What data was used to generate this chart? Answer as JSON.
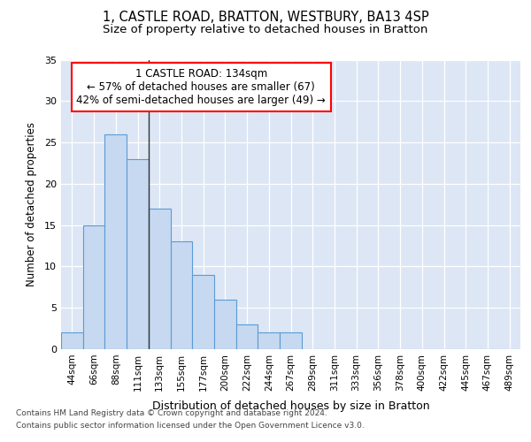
{
  "title1": "1, CASTLE ROAD, BRATTON, WESTBURY, BA13 4SP",
  "title2": "Size of property relative to detached houses in Bratton",
  "xlabel": "Distribution of detached houses by size in Bratton",
  "ylabel": "Number of detached properties",
  "categories": [
    "44sqm",
    "66sqm",
    "88sqm",
    "111sqm",
    "133sqm",
    "155sqm",
    "177sqm",
    "200sqm",
    "222sqm",
    "244sqm",
    "267sqm",
    "289sqm",
    "311sqm",
    "333sqm",
    "356sqm",
    "378sqm",
    "400sqm",
    "422sqm",
    "445sqm",
    "467sqm",
    "489sqm"
  ],
  "values": [
    2,
    15,
    26,
    23,
    17,
    13,
    9,
    6,
    3,
    2,
    2,
    0,
    0,
    0,
    0,
    0,
    0,
    0,
    0,
    0,
    0
  ],
  "bar_color": "#c6d9f0",
  "bar_edge_color": "#5b9bd5",
  "highlight_line_color": "#333333",
  "annotation_text": "1 CASTLE ROAD: 134sqm\n← 57% of detached houses are smaller (67)\n42% of semi-detached houses are larger (49) →",
  "annotation_box_color": "white",
  "annotation_box_edge_color": "red",
  "ylim": [
    0,
    35
  ],
  "yticks": [
    0,
    5,
    10,
    15,
    20,
    25,
    30,
    35
  ],
  "footer1": "Contains HM Land Registry data © Crown copyright and database right 2024.",
  "footer2": "Contains public sector information licensed under the Open Government Licence v3.0.",
  "background_color": "#dce6f5",
  "grid_color": "white"
}
